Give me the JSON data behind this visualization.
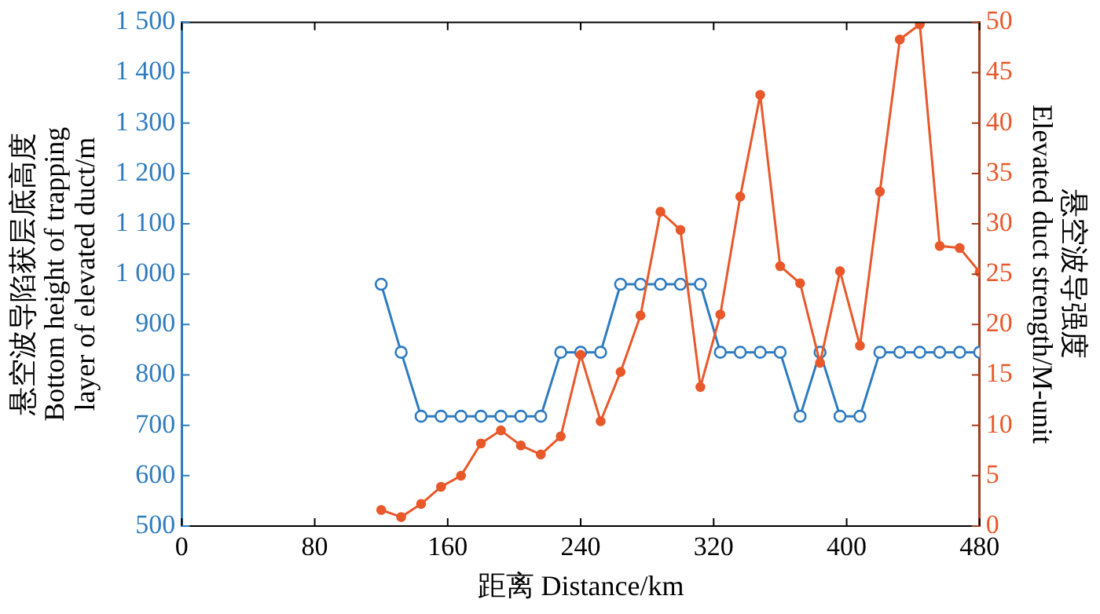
{
  "chart_data": {
    "type": "line",
    "xlabel": "距离 Distance/km",
    "ylabel": "悬空波导陷获层底高度\nBottom height of trapping\nlayer of elevated duct/m",
    "y2label": "悬空波导强度\nElevated duct strength/M-unit",
    "x": [
      120,
      132,
      144,
      156,
      168,
      180,
      192,
      204,
      216,
      228,
      240,
      252,
      264,
      276,
      288,
      300,
      312,
      324,
      336,
      348,
      360,
      372,
      384,
      396,
      408,
      420,
      432,
      444,
      456,
      468,
      480
    ],
    "series": [
      {
        "color": "#2f7bbf",
        "marker": "circle",
        "values": [
          980,
          845,
          718,
          718,
          718,
          718,
          718,
          718,
          718,
          845,
          845,
          845,
          980,
          980,
          980,
          980,
          980,
          845,
          845,
          845,
          845,
          718,
          845,
          718,
          718,
          845,
          845,
          845,
          845,
          845,
          845
        ]
      },
      {
        "color": "#e8582a",
        "marker": "circle",
        "axis": "y2",
        "values": [
          1.6,
          0.9,
          2.2,
          3.9,
          5.0,
          8.2,
          9.5,
          8.0,
          7.1,
          8.9,
          17.0,
          10.4,
          15.3,
          20.9,
          31.2,
          29.4,
          13.8,
          21.0,
          32.7,
          42.8,
          25.8,
          24.1,
          16.2,
          25.3,
          17.9,
          33.2,
          48.3,
          49.8,
          27.8,
          27.6,
          25.2
        ]
      }
    ],
    "xlim": [
      0,
      480
    ],
    "xticks": [
      0,
      80,
      160,
      240,
      320,
      400,
      480
    ],
    "ylim": [
      500,
      1500
    ],
    "yticks": [
      500,
      600,
      700,
      800,
      900,
      {
        "value": 1000,
        "label": "1 000"
      },
      {
        "value": 1100,
        "label": "1 100"
      },
      {
        "value": 1200,
        "label": "1 200"
      },
      {
        "value": 1300,
        "label": "1 300"
      },
      {
        "value": 1400,
        "label": "1 400"
      },
      {
        "value": 1500,
        "label": "1 500"
      }
    ],
    "y2lim": [
      0,
      50
    ],
    "y2ticks": [
      0,
      5,
      10,
      15,
      20,
      25,
      30,
      35,
      40,
      45,
      50
    ],
    "grid": false,
    "legend": false
  }
}
